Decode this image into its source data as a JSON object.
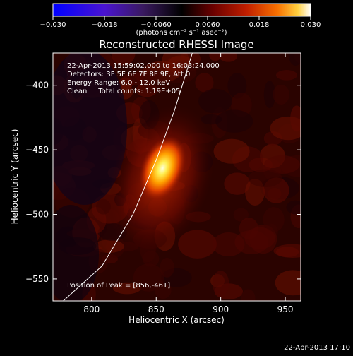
{
  "chart_data": {
    "type": "heatmap",
    "title": "Reconstructed RHESSI Image",
    "xlabel": "Heliocentric X (arcsec)",
    "ylabel": "Heliocentric Y (arcsec)",
    "xlim": [
      770,
      962
    ],
    "ylim": [
      -567,
      -375
    ],
    "xticks": [
      800,
      850,
      900,
      950
    ],
    "yticks": [
      -400,
      -450,
      -500,
      -550
    ],
    "colorbar": {
      "range": [
        -0.03,
        0.03
      ],
      "ticks": [
        "−0.030",
        "−0.018",
        "−0.0060",
        "0.0060",
        "0.018",
        "0.030"
      ],
      "unit_label": "(photons cm⁻² s⁻¹ asec⁻²)",
      "colormap": [
        "#0000ff",
        "#5018d8",
        "#3a2478",
        "#140814",
        "#000000",
        "#5a0000",
        "#b01800",
        "#f06000",
        "#ffc000",
        "#ffffff"
      ]
    },
    "annotations": [
      "22-Apr-2013 15:59:02.000 to 16:03:24.000",
      "Detectors: 3F 5F 6F 7F 8F 9F, Att 0",
      "Energy Range: 6.0 - 12.0 keV",
      "Clean     Total counts: 1.19E+05"
    ],
    "peak_label": "Position of Peak = [856,-461]",
    "peak": {
      "x": 856,
      "y": -461
    },
    "limb_points": [
      [
        878,
        -375
      ],
      [
        864,
        -420
      ],
      [
        850,
        -458
      ],
      [
        832,
        -500
      ],
      [
        808,
        -540
      ],
      [
        778,
        -567
      ]
    ],
    "grid": false
  },
  "footer_timestamp": "22-Apr-2013 17:10"
}
